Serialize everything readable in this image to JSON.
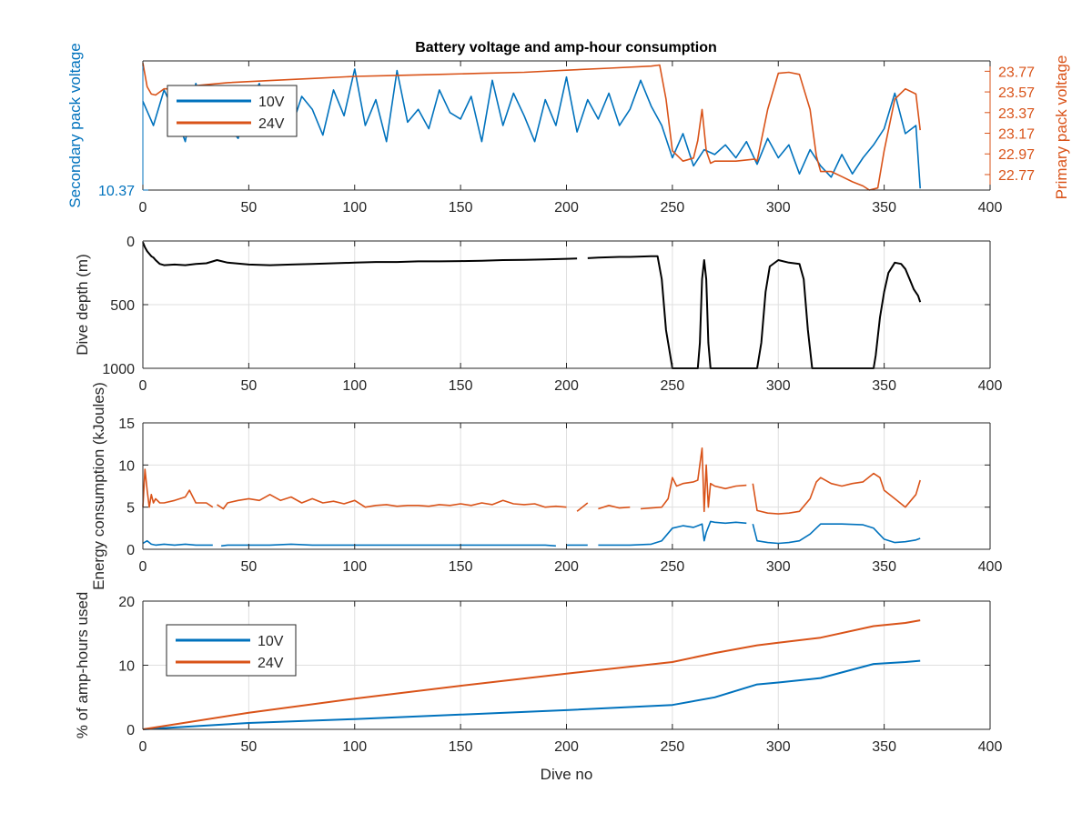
{
  "colors": {
    "v10": "#0072BD",
    "v24": "#D95319",
    "depth": "#000000",
    "axis": "#262626",
    "grid": "#dfdfdf"
  },
  "title": "Battery voltage and amp-hour consumption",
  "chart_data": [
    {
      "type": "line",
      "title": "Battery voltage and amp-hour consumption",
      "xlabel": "",
      "ylabel": "Secondary pack voltage",
      "ylabel_right": "Primary pack voltage",
      "xlim": [
        0,
        400
      ],
      "xticks": [
        "0",
        "50",
        "100",
        "150",
        "200",
        "250",
        "300",
        "350",
        "400"
      ],
      "yticks_left": [
        "10.37"
      ],
      "ylim_left": [
        10.37,
        10.45
      ],
      "yticks_right": [
        "23.77",
        "23.57",
        "23.37",
        "23.17",
        "22.97",
        "22.77"
      ],
      "ylim_right": [
        22.62,
        23.87
      ],
      "legend": {
        "placement": "top-left",
        "entries": [
          "10V",
          "24V"
        ]
      },
      "grid": false,
      "series": [
        {
          "name": "10V",
          "axis": "left",
          "x": [
            0,
            5,
            10,
            15,
            20,
            25,
            30,
            35,
            40,
            45,
            50,
            55,
            60,
            65,
            70,
            75,
            80,
            85,
            90,
            95,
            100,
            105,
            110,
            115,
            120,
            125,
            130,
            135,
            140,
            145,
            150,
            155,
            160,
            165,
            170,
            175,
            180,
            185,
            190,
            195,
            200,
            205,
            210,
            215,
            220,
            225,
            230,
            235,
            240,
            245,
            250,
            255,
            260,
            265,
            270,
            275,
            280,
            285,
            290,
            295,
            300,
            305,
            310,
            315,
            320,
            325,
            330,
            335,
            340,
            345,
            350,
            355,
            360,
            365,
            367
          ],
          "values": [
            10.425,
            10.41,
            10.432,
            10.418,
            10.4,
            10.436,
            10.415,
            10.43,
            10.41,
            10.402,
            10.424,
            10.436,
            10.41,
            10.43,
            10.408,
            10.428,
            10.42,
            10.404,
            10.432,
            10.416,
            10.445,
            10.41,
            10.426,
            10.4,
            10.444,
            10.412,
            10.42,
            10.408,
            10.432,
            10.418,
            10.414,
            10.428,
            10.4,
            10.438,
            10.41,
            10.43,
            10.416,
            10.4,
            10.426,
            10.41,
            10.44,
            10.406,
            10.426,
            10.414,
            10.43,
            10.41,
            10.42,
            10.438,
            10.422,
            10.41,
            10.39,
            10.405,
            10.385,
            10.395,
            10.392,
            10.398,
            10.39,
            10.4,
            10.386,
            10.402,
            10.39,
            10.398,
            10.38,
            10.395,
            10.385,
            10.378,
            10.392,
            10.38,
            10.39,
            10.398,
            10.408,
            10.43,
            10.405,
            10.41,
            10.371
          ]
        },
        {
          "name": "24V",
          "axis": "right",
          "x": [
            0,
            2,
            4,
            6,
            8,
            10,
            15,
            20,
            30,
            40,
            60,
            80,
            100,
            120,
            140,
            160,
            180,
            200,
            220,
            240,
            244,
            247,
            250,
            255,
            260,
            262,
            264,
            266,
            268,
            270,
            280,
            289,
            290,
            295,
            300,
            305,
            310,
            315,
            318,
            320,
            325,
            330,
            335,
            340,
            343,
            347,
            350,
            355,
            360,
            365,
            367
          ],
          "values": [
            23.85,
            23.62,
            23.55,
            23.54,
            23.57,
            23.6,
            23.6,
            23.62,
            23.64,
            23.66,
            23.68,
            23.7,
            23.72,
            23.73,
            23.74,
            23.75,
            23.76,
            23.78,
            23.8,
            23.82,
            23.83,
            23.5,
            23.0,
            22.9,
            22.93,
            23.1,
            23.4,
            23.0,
            22.88,
            22.9,
            22.9,
            22.92,
            22.9,
            23.4,
            23.75,
            23.76,
            23.74,
            23.4,
            22.95,
            22.8,
            22.8,
            22.75,
            22.7,
            22.66,
            22.62,
            22.64,
            23.0,
            23.5,
            23.6,
            23.55,
            23.2
          ]
        }
      ]
    },
    {
      "type": "line",
      "xlabel": "",
      "ylabel": "Dive depth (m)",
      "xlim": [
        0,
        400
      ],
      "ylim": [
        0,
        1000
      ],
      "y_reversed": true,
      "xticks": [
        "0",
        "50",
        "100",
        "150",
        "200",
        "250",
        "300",
        "350",
        "400"
      ],
      "yticks": [
        "0",
        "500",
        "1000"
      ],
      "grid": true,
      "series": [
        {
          "name": "",
          "x": [
            0,
            1,
            2,
            3,
            4,
            5,
            6,
            8,
            10,
            15,
            20,
            25,
            30,
            35,
            40,
            50,
            60,
            70,
            80,
            90,
            100,
            110,
            120,
            130,
            140,
            150,
            160,
            170,
            180,
            190,
            200,
            205,
            210,
            215,
            220,
            225,
            230,
            235,
            240,
            243,
            245,
            247,
            250,
            255,
            260,
            262,
            263,
            264,
            265,
            266,
            267,
            268,
            269,
            270,
            275,
            285,
            288,
            290,
            292,
            294,
            296,
            300,
            305,
            310,
            312,
            314,
            316,
            318,
            320,
            330,
            340,
            345,
            346,
            348,
            350,
            352,
            355,
            358,
            360,
            362,
            364,
            366,
            367
          ],
          "values": [
            10,
            50,
            80,
            100,
            120,
            130,
            150,
            180,
            190,
            185,
            190,
            180,
            175,
            150,
            170,
            185,
            190,
            185,
            180,
            175,
            170,
            165,
            165,
            160,
            160,
            158,
            155,
            150,
            148,
            145,
            140,
            138,
            135,
            130,
            128,
            125,
            125,
            122,
            120,
            120,
            300,
            700,
            1000,
            1000,
            1000,
            1000,
            800,
            300,
            150,
            300,
            800,
            1000,
            1000,
            1000,
            1000,
            1000,
            1000,
            1000,
            800,
            400,
            200,
            150,
            170,
            180,
            300,
            700,
            1000,
            1000,
            1000,
            1000,
            1000,
            1000,
            900,
            600,
            400,
            250,
            170,
            180,
            220,
            300,
            380,
            430,
            480
          ],
          "breaks_after_x": [
            207
          ]
        }
      ]
    },
    {
      "type": "line",
      "xlabel": "",
      "ylabel": "Energy consumption (kJoules)",
      "xlim": [
        0,
        400
      ],
      "ylim": [
        0,
        15
      ],
      "xticks": [
        "0",
        "50",
        "100",
        "150",
        "200",
        "250",
        "300",
        "350",
        "400"
      ],
      "yticks": [
        "0",
        "5",
        "10",
        "15"
      ],
      "grid": true,
      "series": [
        {
          "name": "24V",
          "x": [
            0,
            1,
            2,
            3,
            4,
            5,
            6,
            8,
            10,
            15,
            20,
            22,
            25,
            30,
            33,
            35,
            38,
            40,
            45,
            50,
            55,
            60,
            65,
            70,
            75,
            80,
            85,
            90,
            95,
            100,
            105,
            110,
            115,
            120,
            125,
            130,
            135,
            140,
            145,
            150,
            155,
            160,
            165,
            170,
            175,
            180,
            185,
            190,
            195,
            200,
            205,
            210,
            215,
            220,
            225,
            230,
            235,
            240,
            245,
            248,
            250,
            252,
            255,
            260,
            262,
            264,
            265,
            266,
            267,
            268,
            270,
            275,
            280,
            285,
            288,
            290,
            295,
            300,
            305,
            310,
            315,
            318,
            320,
            325,
            330,
            335,
            340,
            345,
            348,
            350,
            355,
            360,
            365,
            367
          ],
          "values": [
            5,
            9.5,
            7,
            5,
            6.5,
            5.5,
            6,
            5.5,
            5.5,
            5.8,
            6.2,
            7,
            5.5,
            5.5,
            5,
            5.3,
            4.8,
            5.5,
            5.8,
            6,
            5.8,
            6.5,
            5.8,
            6.2,
            5.5,
            6,
            5.5,
            5.7,
            5.4,
            5.8,
            5,
            5.2,
            5.3,
            5.1,
            5.2,
            5.2,
            5.1,
            5.3,
            5.2,
            5.4,
            5.2,
            5.5,
            5.3,
            5.8,
            5.4,
            5.3,
            5.4,
            5.0,
            5.1,
            5.0,
            4.5,
            5.5,
            4.8,
            5.2,
            4.9,
            5.0,
            4.8,
            4.9,
            5,
            6,
            8.5,
            7.5,
            7.8,
            8,
            8.2,
            12,
            4.5,
            10,
            5,
            7.8,
            7.5,
            7.2,
            7.5,
            7.6,
            7.8,
            4.6,
            4.3,
            4.2,
            4.3,
            4.5,
            6,
            8,
            8.5,
            7.8,
            7.5,
            7.8,
            8,
            9,
            8.5,
            7,
            6,
            5,
            6.5,
            8.2
          ],
          "breaks_after_x": [
            33,
            200,
            210,
            230,
            285
          ]
        },
        {
          "name": "10V",
          "x": [
            0,
            2,
            4,
            6,
            10,
            15,
            20,
            25,
            30,
            33,
            37,
            40,
            50,
            60,
            70,
            80,
            90,
            100,
            110,
            120,
            130,
            140,
            150,
            160,
            170,
            180,
            190,
            195,
            200,
            205,
            210,
            215,
            220,
            230,
            240,
            245,
            250,
            255,
            260,
            262,
            264,
            265,
            266,
            268,
            270,
            275,
            280,
            285,
            288,
            290,
            295,
            300,
            305,
            310,
            315,
            320,
            330,
            340,
            345,
            350,
            355,
            360,
            365,
            367
          ],
          "values": [
            0.7,
            1,
            0.6,
            0.5,
            0.6,
            0.5,
            0.6,
            0.5,
            0.5,
            0.5,
            0.4,
            0.5,
            0.5,
            0.5,
            0.6,
            0.5,
            0.5,
            0.5,
            0.5,
            0.5,
            0.5,
            0.5,
            0.5,
            0.5,
            0.5,
            0.5,
            0.5,
            0.4,
            0.5,
            0.5,
            0.5,
            0.5,
            0.5,
            0.5,
            0.6,
            1,
            2.5,
            2.8,
            2.6,
            2.8,
            3,
            1,
            2,
            3.3,
            3.2,
            3.1,
            3.2,
            3.1,
            3,
            1,
            0.8,
            0.7,
            0.8,
            1,
            1.8,
            3,
            3,
            2.9,
            2.5,
            1.2,
            0.8,
            0.9,
            1.1,
            1.3
          ],
          "breaks_after_x": [
            33,
            198,
            210,
            285
          ]
        }
      ]
    },
    {
      "type": "line",
      "xlabel": "Dive no",
      "ylabel": "% of amp-hours used",
      "xlim": [
        0,
        400
      ],
      "ylim": [
        0,
        20
      ],
      "xticks": [
        "0",
        "50",
        "100",
        "150",
        "200",
        "250",
        "300",
        "350",
        "400"
      ],
      "yticks": [
        "0",
        "10",
        "20"
      ],
      "legend": {
        "placement": "top-left",
        "entries": [
          "10V",
          "24V"
        ]
      },
      "grid": true,
      "series": [
        {
          "name": "10V",
          "x": [
            0,
            50,
            100,
            150,
            200,
            250,
            270,
            290,
            300,
            320,
            345,
            360,
            367
          ],
          "values": [
            0,
            1,
            1.6,
            2.3,
            3,
            3.8,
            5,
            7,
            7.3,
            8,
            10.2,
            10.5,
            10.7
          ]
        },
        {
          "name": "24V",
          "x": [
            0,
            50,
            100,
            150,
            200,
            250,
            270,
            290,
            300,
            320,
            345,
            360,
            367
          ],
          "values": [
            0,
            2.6,
            4.8,
            6.8,
            8.7,
            10.5,
            11.9,
            13.1,
            13.5,
            14.3,
            16.1,
            16.6,
            17
          ]
        }
      ]
    }
  ]
}
